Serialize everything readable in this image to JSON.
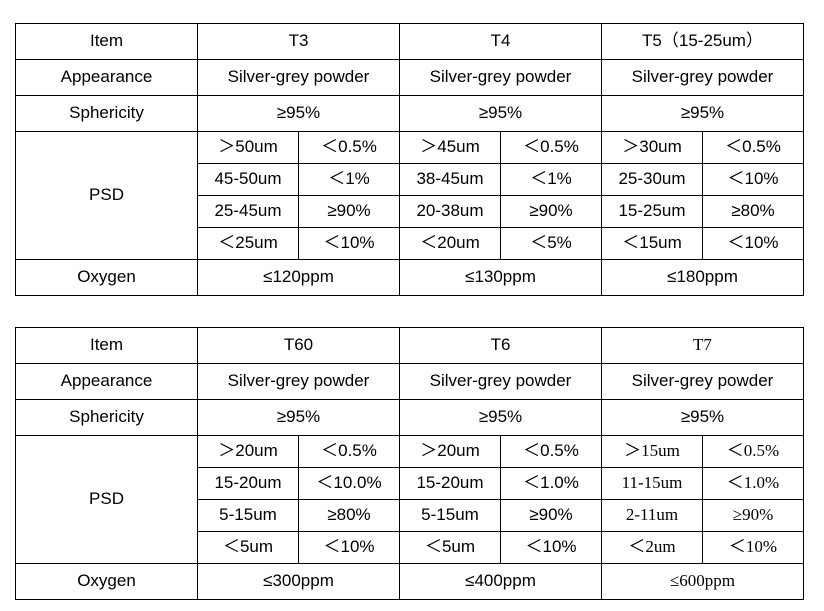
{
  "tables": [
    {
      "item_label": "Item",
      "grades": [
        "T3",
        "T4",
        "T5（15-25um）"
      ],
      "appearance_label": "Appearance",
      "appearance": [
        "Silver-grey powder",
        "Silver-grey powder",
        "Silver-grey powder"
      ],
      "sphericity_label": "Sphericity",
      "sphericity": [
        "≥95%",
        "≥95%",
        "≥95%"
      ],
      "psd_label": "PSD",
      "psd_rows": [
        [
          "＞50um",
          "＜0.5%",
          "＞45um",
          "＜0.5%",
          "＞30um",
          "＜0.5%"
        ],
        [
          "45-50um",
          "＜1%",
          "38-45um",
          "＜1%",
          "25-30um",
          "＜10%"
        ],
        [
          "25-45um",
          "≥90%",
          "20-38um",
          "≥90%",
          "15-25um",
          "≥80%"
        ],
        [
          "＜25um",
          "＜10%",
          "＜20um",
          "＜5%",
          "＜15um",
          "＜10%"
        ]
      ],
      "oxygen_label": "Oxygen",
      "oxygen": [
        "≤120ppm",
        "≤130ppm",
        "≤180ppm"
      ]
    },
    {
      "item_label": "Item",
      "grades": [
        "T60",
        "T6",
        "T7"
      ],
      "appearance_label": "Appearance",
      "appearance": [
        "Silver-grey powder",
        "Silver-grey powder",
        "Silver-grey powder"
      ],
      "sphericity_label": "Sphericity",
      "sphericity": [
        "≥95%",
        "≥95%",
        "≥95%"
      ],
      "psd_label": "PSD",
      "psd_rows": [
        [
          "＞20um",
          "＜0.5%",
          "＞20um",
          "＜0.5%",
          "＞15um",
          "＜0.5%"
        ],
        [
          "15-20um",
          "＜10.0%",
          "15-20um",
          "＜1.0%",
          "11-15um",
          "＜1.0%"
        ],
        [
          "5-15um",
          "≥80%",
          "5-15um",
          "≥90%",
          "2-11um",
          "≥90%"
        ],
        [
          "＜5um",
          "＜10%",
          "＜5um",
          "＜10%",
          "＜2um",
          "＜10%"
        ]
      ],
      "oxygen_label": "Oxygen",
      "oxygen": [
        "≤300ppm",
        "≤400ppm",
        "≤600ppm"
      ]
    }
  ]
}
